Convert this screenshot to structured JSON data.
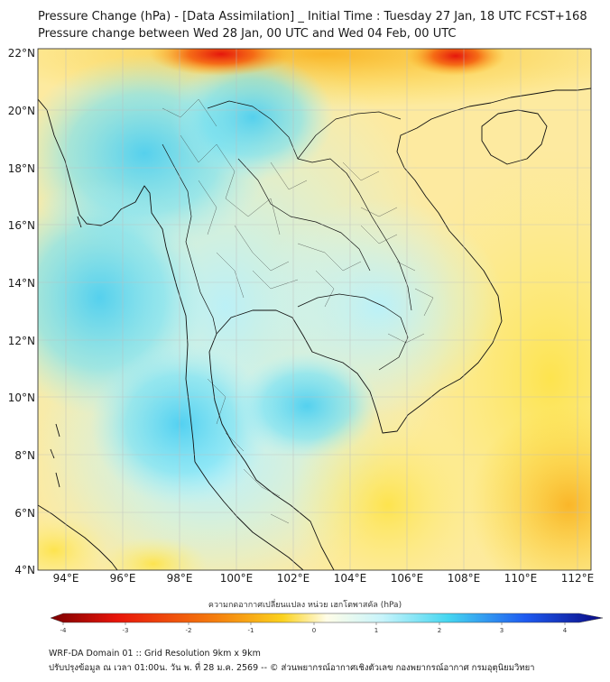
{
  "title": {
    "line1": "Pressure Change (hPa) - [Data Assimilation] _ Initial Time : Tuesday 27 Jan, 18 UTC FCST+168",
    "line2": "Pressure change between Wed 28 Jan, 00 UTC and Wed 04 Feb, 00 UTC"
  },
  "axes": {
    "lat_labels": [
      "22°N",
      "20°N",
      "18°N",
      "16°N",
      "14°N",
      "12°N",
      "10°N",
      "8°N",
      "6°N",
      "4°N"
    ],
    "lon_labels": [
      "94°E",
      "96°E",
      "98°E",
      "100°E",
      "102°E",
      "104°E",
      "106°E",
      "108°E",
      "110°E",
      "112°E"
    ]
  },
  "colorbar": {
    "title": "ความกดอากาศเปลี่ยนแปลง หน่วย เฮกโตพาสคัล (hPa)",
    "ticks": [
      "-4",
      "-3",
      "-2",
      "-1",
      "0",
      "1",
      "2",
      "3",
      "4"
    ],
    "min": -4,
    "max": 4,
    "colors": {
      "neg_dark": "#7a0000",
      "neg_red": "#e8140a",
      "neg_orange": "#f57f0d",
      "neg_yellow": "#fbd21e",
      "zero": "#fffde8",
      "pos_light": "#c8f4fb",
      "pos_cyan": "#45d6f0",
      "pos_blue": "#1e5af0",
      "pos_dark": "#0a0a82"
    }
  },
  "footer": {
    "line1": "WRF-DA Domain 01 :: Grid Resolution 9km x 9km",
    "line2": "ปรับปรุงข้อมูล ณ เวลา 01:00น. วัน พ. ที่ 28 ม.ค. 2569 -- © ส่วนพยากรณ์อากาศเชิงตัวเลข กองพยากรณ์อากาศ กรมอุตุนิยมวิทยา"
  }
}
